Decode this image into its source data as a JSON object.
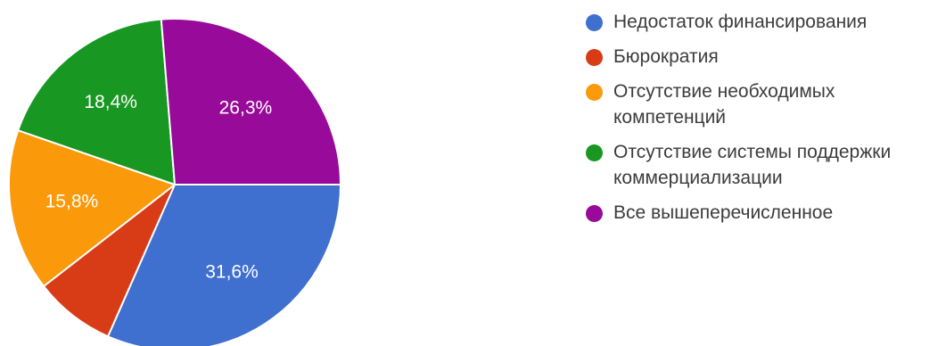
{
  "chart_data": {
    "type": "pie",
    "slices": [
      {
        "label": "Недостаток финансирования",
        "value": 31.6,
        "display": "31,6%",
        "color": "#3f6fcf"
      },
      {
        "label": "Бюрократия",
        "value": 7.9,
        "display": "",
        "color": "#d83c17"
      },
      {
        "label": "Отсутствие необходимых\nкомпетенций",
        "value": 15.8,
        "display": "15,8%",
        "color": "#fa9a0b"
      },
      {
        "label": "Отсутствие системы поддержки\nкоммерциализации",
        "value": 18.4,
        "display": "18,4%",
        "color": "#189722"
      },
      {
        "label": "Все вышеперечисленное",
        "value": 26.3,
        "display": "26,3%",
        "color": "#980a99"
      }
    ],
    "legend_position": "right"
  }
}
